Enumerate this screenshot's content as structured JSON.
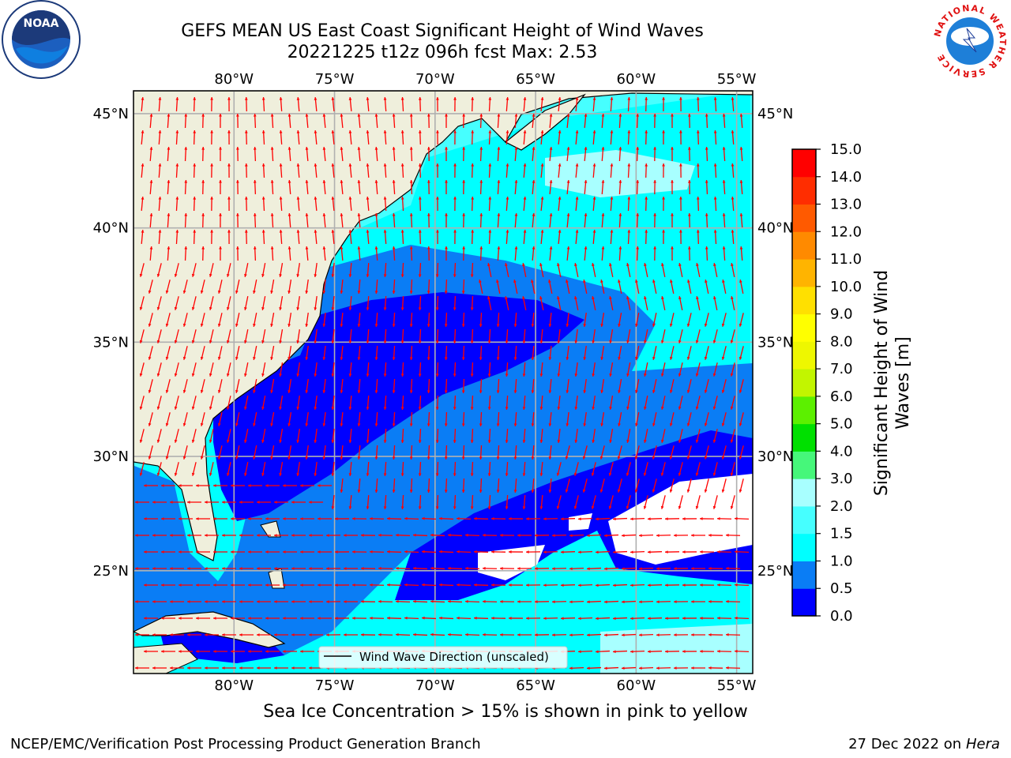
{
  "header": {
    "title_line1": "GEFS MEAN US East Coast Significant Height of Wind Waves",
    "title_line2": "20221225 t12z 096h fcst   Max: 2.53"
  },
  "logos": {
    "noaa_text": "NOAA",
    "nws_ring": "NATIONAL WEATHER SERVICE"
  },
  "map": {
    "lon_labels": [
      "80°W",
      "75°W",
      "70°W",
      "65°W",
      "60°W",
      "55°W"
    ],
    "lat_labels": [
      "45°N",
      "40°N",
      "35°N",
      "30°N",
      "25°N"
    ],
    "extent": {
      "lon_min": -85,
      "lon_max": -54.2,
      "lat_min": 20.5,
      "lat_max": 46
    },
    "legend_label": "Wind Wave Direction (unscaled)",
    "colors": {
      "land": "#efefdc",
      "arrow": "#ff0000",
      "grid": "#b0b0b0"
    }
  },
  "colorbar": {
    "label": "Significant Height of Wind Waves [m]",
    "ticks": [
      "0.0",
      "0.5",
      "1.0",
      "1.5",
      "2.0",
      "3.0",
      "4.0",
      "5.0",
      "6.0",
      "7.0",
      "8.0",
      "9.0",
      "10.0",
      "11.0",
      "12.0",
      "13.0",
      "14.0",
      "15.0"
    ],
    "colors": [
      "#0000ff",
      "#0a7df5",
      "#00ffff",
      "#46ffff",
      "#a8ffff",
      "#46f77a",
      "#00e000",
      "#5cf000",
      "#c2f500",
      "#eef700",
      "#ffff00",
      "#ffe000",
      "#ffb400",
      "#ff8a00",
      "#ff5a00",
      "#ff2d00",
      "#ff0000"
    ]
  },
  "footer": {
    "sea_ice_note": "Sea Ice Concentration > 15% is shown in pink to yellow",
    "credit_left": "NCEP/EMC/Verification Post Processing Product Generation Branch",
    "date": "27 Dec 2022",
    "on_word": "on",
    "machine": "Hera"
  }
}
